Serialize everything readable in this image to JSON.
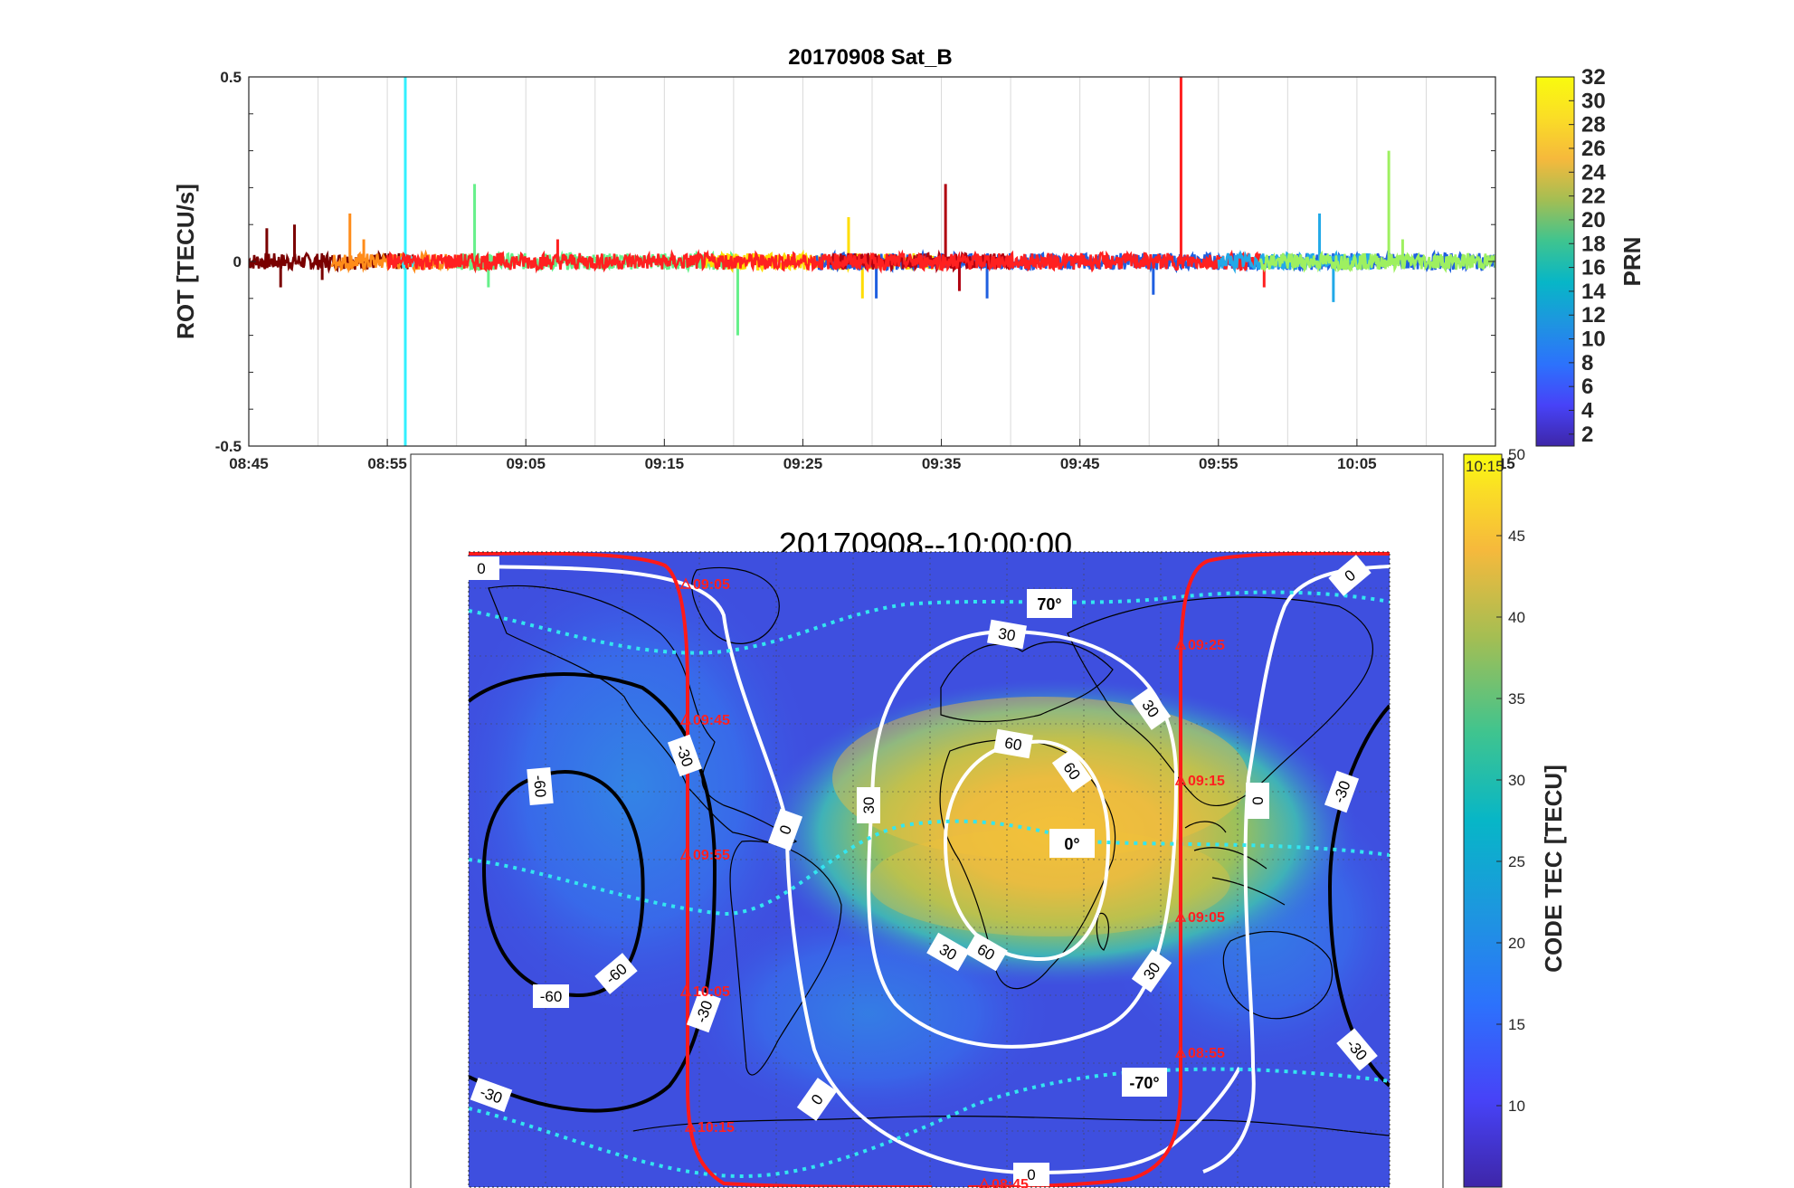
{
  "chart_data": [
    {
      "type": "line",
      "title": "20170908  Sat_B",
      "xlabel": "",
      "ylabel": "ROT [TECU/s]",
      "x_ticks": [
        "08:45",
        "08:55",
        "09:05",
        "09:15",
        "09:25",
        "09:35",
        "09:45",
        "09:55",
        "10:05",
        "10:15"
      ],
      "x_range": [
        "08:45",
        "10:15"
      ],
      "ylim": [
        -0.5,
        0.5
      ],
      "y_ticks": [
        "-0.5",
        "0",
        "0.5"
      ],
      "grid": "vertical",
      "colorbar": {
        "label": "PRN",
        "range": [
          1,
          32
        ],
        "ticks": [
          "2",
          "4",
          "6",
          "8",
          "10",
          "12",
          "14",
          "16",
          "18",
          "20",
          "22",
          "24",
          "26",
          "28",
          "30",
          "32"
        ],
        "colormap": [
          "#3e26a8",
          "#4743f8",
          "#2c72fc",
          "#1e95e0",
          "#07b6c7",
          "#3fc48f",
          "#a4be53",
          "#f6b93c",
          "#fadd26",
          "#f9fb0e"
        ]
      },
      "series": [
        {
          "color": "#7a0000",
          "x_start": "08:45",
          "x_end": "08:57",
          "level": 0.0,
          "spikes": [
            [
              "08:46",
              0.09
            ],
            [
              "08:47",
              -0.07
            ],
            [
              "08:48",
              0.1
            ],
            [
              "08:50",
              -0.05
            ]
          ]
        },
        {
          "color": "#ff8c1a",
          "x_start": "08:51",
          "x_end": "09:02",
          "level": 0.0,
          "spikes": [
            [
              "08:52",
              0.13
            ],
            [
              "08:53",
              0.06
            ]
          ]
        },
        {
          "color": "#33f0ff",
          "x_start": "08:56",
          "x_end": "08:57",
          "level": 0.0,
          "spikes": [
            [
              "08:56",
              0.5
            ],
            [
              "08:56",
              -0.5
            ]
          ]
        },
        {
          "color": "#66f08a",
          "x_start": "09:00",
          "x_end": "09:20",
          "level": 0.0,
          "spikes": [
            [
              "09:01",
              0.21
            ],
            [
              "09:02",
              -0.07
            ],
            [
              "09:20",
              -0.2
            ]
          ]
        },
        {
          "color": "#ffdd00",
          "x_start": "09:18",
          "x_end": "09:35",
          "level": 0.0,
          "spikes": [
            [
              "09:28",
              0.12
            ],
            [
              "09:29",
              -0.1
            ]
          ]
        },
        {
          "color": "#1f5fe0",
          "x_start": "09:26",
          "x_end": "10:15",
          "level": 0.0,
          "spikes": [
            [
              "09:30",
              -0.1
            ],
            [
              "09:38",
              -0.1
            ],
            [
              "09:50",
              -0.09
            ]
          ]
        },
        {
          "color": "#b00010",
          "x_start": "09:27",
          "x_end": "09:40",
          "level": 0.0,
          "spikes": [
            [
              "09:35",
              0.21
            ],
            [
              "09:36",
              -0.08
            ]
          ]
        },
        {
          "color": "#ff2020",
          "x_start": "08:55",
          "x_end": "09:58",
          "level": 0.0,
          "spikes": [
            [
              "09:07",
              0.06
            ],
            [
              "09:52",
              0.5
            ],
            [
              "09:58",
              -0.07
            ]
          ]
        },
        {
          "color": "#22a9e8",
          "x_start": "09:55",
          "x_end": "10:06",
          "level": 0.0,
          "spikes": [
            [
              "10:02",
              0.13
            ],
            [
              "10:03",
              -0.11
            ]
          ]
        },
        {
          "color": "#9ef060",
          "x_start": "09:58",
          "x_end": "10:15",
          "level": 0.0,
          "spikes": [
            [
              "10:07",
              0.3
            ],
            [
              "10:08",
              0.06
            ]
          ]
        }
      ]
    },
    {
      "type": "heatmap",
      "title": "20170908--10:00:00",
      "colorbar": {
        "label": "CODE TEC [TECU]",
        "range": [
          5,
          50
        ],
        "ticks": [
          "10",
          "15",
          "20",
          "25",
          "30",
          "35",
          "40",
          "45",
          "50"
        ],
        "top_label": "10:15"
      },
      "contour_labels_white": [
        "0",
        "0",
        "0",
        "0",
        "0",
        "0",
        "30",
        "30",
        "30",
        "30",
        "30",
        "60",
        "60",
        "60"
      ],
      "contour_labels_black": [
        "-30",
        "-30",
        "-30",
        "-30",
        "-30",
        "-60",
        "-60",
        "-60"
      ],
      "latitude_labels": [
        "70°",
        "0°",
        "-70°"
      ],
      "track_times": [
        "09:05",
        "09:45",
        "09:55",
        "10:05",
        "10:15",
        "08:45",
        "08:55",
        "09:05",
        "09:15",
        "09:25"
      ]
    }
  ]
}
